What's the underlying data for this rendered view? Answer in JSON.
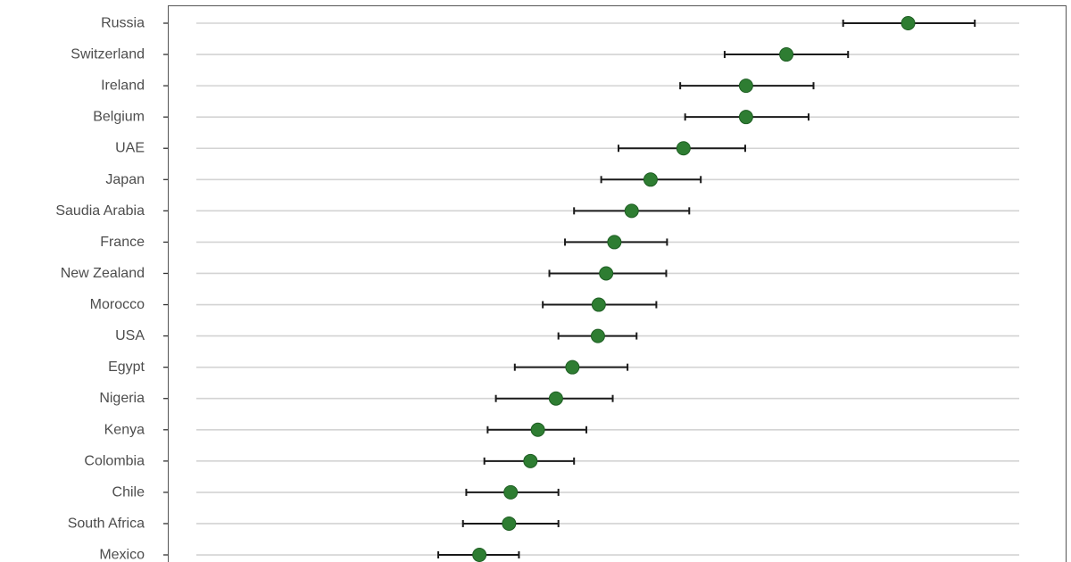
{
  "chart_data": {
    "type": "scatter",
    "subtype": "point-with-error-bars",
    "orientation": "horizontal",
    "title": "",
    "xlabel": "",
    "ylabel": "",
    "x_axis_visible": false,
    "grid": "horizontal",
    "legend": "none",
    "colors": {
      "point": "#2e7d32",
      "point_edge": "#1e5e23",
      "error_bar": "#1a1a1a",
      "gridline": "#d3d3d3",
      "panel_border": "#555555",
      "tick_label": "#4d4d4d"
    },
    "xlim": [
      0,
      100
    ],
    "categories": [
      "Russia",
      "Switzerland",
      "Ireland",
      "Belgium",
      "UAE",
      "Japan",
      "Saudia Arabia",
      "France",
      "New Zealand",
      "Morocco",
      "USA",
      "Egypt",
      "Nigeria",
      "Kenya",
      "Colombia",
      "Chile",
      "South Africa",
      "Mexico"
    ],
    "series": [
      {
        "values": [
          86.5,
          71.7,
          66.8,
          66.8,
          59.2,
          55.2,
          52.9,
          50.8,
          49.8,
          48.9,
          48.8,
          45.7,
          43.7,
          41.5,
          40.6,
          38.2,
          38.0,
          34.4
        ],
        "lower": [
          78.6,
          64.2,
          58.8,
          59.4,
          51.3,
          49.2,
          45.9,
          44.8,
          42.9,
          42.1,
          44.0,
          38.7,
          36.4,
          35.4,
          35.0,
          32.8,
          32.4,
          29.4
        ],
        "upper": [
          94.6,
          79.2,
          75.0,
          74.4,
          66.7,
          61.3,
          59.9,
          57.2,
          57.1,
          55.9,
          53.5,
          52.4,
          50.6,
          47.4,
          45.9,
          44.0,
          44.0,
          39.2
        ]
      }
    ]
  }
}
